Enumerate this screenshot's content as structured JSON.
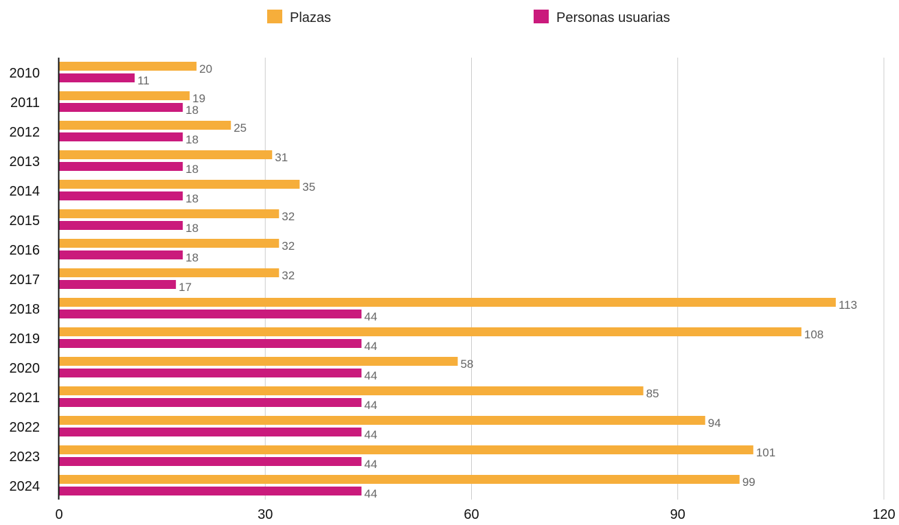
{
  "chart_data": {
    "type": "bar",
    "orientation": "horizontal",
    "categories": [
      "2010",
      "2011",
      "2012",
      "2013",
      "2014",
      "2015",
      "2016",
      "2017",
      "2018",
      "2019",
      "2020",
      "2021",
      "2022",
      "2023",
      "2024"
    ],
    "series": [
      {
        "name": "Plazas",
        "color": "#F6AE3B",
        "values": [
          20,
          19,
          25,
          31,
          35,
          32,
          32,
          32,
          113,
          108,
          58,
          85,
          94,
          101,
          99
        ]
      },
      {
        "name": "Personas usuarias",
        "color": "#CA1A7C",
        "values": [
          11,
          18,
          18,
          18,
          18,
          18,
          18,
          17,
          44,
          44,
          44,
          44,
          44,
          44,
          44
        ]
      }
    ],
    "xlim": [
      0,
      120
    ],
    "xticks": [
      "0",
      "30",
      "60",
      "90",
      "120"
    ],
    "grid": "vertical",
    "legend_position": "top",
    "data_labels": true
  }
}
